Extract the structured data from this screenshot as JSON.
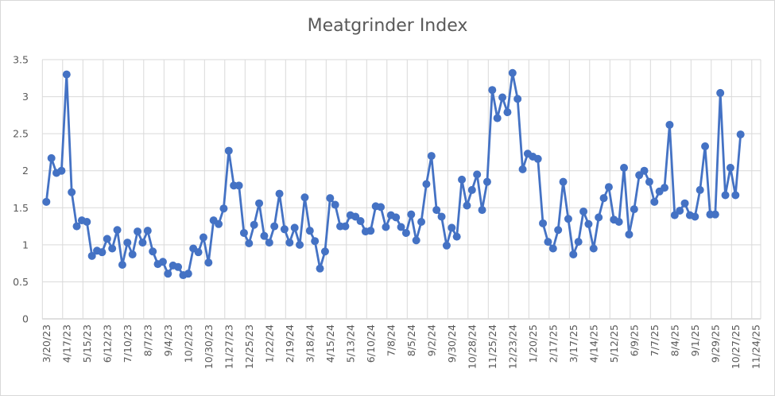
{
  "chart_data": {
    "type": "line",
    "title": "Meatgrinder Index",
    "xlabel": "",
    "ylabel": "",
    "ylim": [
      0,
      3.5
    ],
    "yticks": [
      "0",
      "0.5",
      "1",
      "1.5",
      "2",
      "2.5",
      "3",
      "3.5"
    ],
    "xrange": [
      "3/20/23",
      "11/24/25"
    ],
    "xtick_labels": [
      "3/20/23",
      "4/17/23",
      "5/15/23",
      "6/12/23",
      "7/10/23",
      "8/7/23",
      "9/4/23",
      "10/2/23",
      "10/30/23",
      "11/27/23",
      "12/25/23",
      "1/22/24",
      "2/19/24",
      "3/18/24",
      "4/15/24",
      "5/13/24",
      "6/10/24",
      "7/8/24",
      "8/5/24",
      "9/2/24",
      "9/30/24",
      "10/28/24",
      "11/25/24",
      "12/23/24",
      "1/20/25",
      "2/17/25",
      "3/17/25",
      "4/14/25",
      "5/12/25",
      "6/9/25",
      "7/7/25",
      "8/4/25",
      "9/1/25",
      "9/29/25",
      "10/27/25",
      "11/24/25"
    ],
    "grid": true,
    "legend": "none",
    "markers": true,
    "color": "#4472C4",
    "x": [
      "3/20/23",
      "3/27/23",
      "4/3/23",
      "4/10/23",
      "4/17/23",
      "4/24/23",
      "5/1/23",
      "5/8/23",
      "5/15/23",
      "5/22/23",
      "5/29/23",
      "6/5/23",
      "6/12/23",
      "6/19/23",
      "6/26/23",
      "7/3/23",
      "7/10/23",
      "7/17/23",
      "7/24/23",
      "7/31/23",
      "8/7/23",
      "8/14/23",
      "8/21/23",
      "8/28/23",
      "9/4/23",
      "9/11/23",
      "9/18/23",
      "9/25/23",
      "10/2/23",
      "10/9/23",
      "10/16/23",
      "10/23/23",
      "10/30/23",
      "11/6/23",
      "11/13/23",
      "11/20/23",
      "11/27/23",
      "12/4/23",
      "12/11/23",
      "12/18/23",
      "12/25/23",
      "1/1/24",
      "1/8/24",
      "1/15/24",
      "1/22/24",
      "1/29/24",
      "2/5/24",
      "2/12/24",
      "2/19/24",
      "2/26/24",
      "3/4/24",
      "3/11/24",
      "3/18/24",
      "3/25/24",
      "4/1/24",
      "4/8/24",
      "4/15/24",
      "4/22/24",
      "4/29/24",
      "5/6/24",
      "5/13/24",
      "5/20/24",
      "5/27/24",
      "6/3/24",
      "6/10/24",
      "6/17/24",
      "6/24/24",
      "7/1/24",
      "7/8/24",
      "7/15/24",
      "7/22/24",
      "7/29/24",
      "8/5/24",
      "8/12/24",
      "8/19/24",
      "8/26/24",
      "9/2/24",
      "9/9/24",
      "9/16/24",
      "9/23/24",
      "9/30/24",
      "10/7/24",
      "10/14/24",
      "10/21/24",
      "10/28/24",
      "11/4/24",
      "11/11/24",
      "11/18/24",
      "11/25/24",
      "12/2/24",
      "12/9/24",
      "12/16/24",
      "12/23/24",
      "12/30/24",
      "1/6/25",
      "1/13/25",
      "1/20/25",
      "1/27/25",
      "2/3/25",
      "2/10/25",
      "2/17/25",
      "2/24/25",
      "3/3/25",
      "3/10/25",
      "3/17/25",
      "3/24/25",
      "3/31/25",
      "4/7/25",
      "4/14/25",
      "4/21/25",
      "4/28/25",
      "5/5/25",
      "5/12/25",
      "5/19/25",
      "5/26/25",
      "6/2/25",
      "6/9/25",
      "6/16/25",
      "6/23/25",
      "6/30/25",
      "7/7/25",
      "7/14/25",
      "7/21/25",
      "7/28/25",
      "8/4/25",
      "8/11/25",
      "8/18/25",
      "8/25/25",
      "9/1/25",
      "9/8/25",
      "9/15/25",
      "9/22/25",
      "9/29/25",
      "10/6/25",
      "10/13/25",
      "10/20/25",
      "10/27/25",
      "11/3/25"
    ],
    "values": [
      1.58,
      2.17,
      1.97,
      2.0,
      3.3,
      1.71,
      1.25,
      1.33,
      1.31,
      0.85,
      0.92,
      0.9,
      1.08,
      0.95,
      1.2,
      0.73,
      1.03,
      0.87,
      1.18,
      1.03,
      1.19,
      0.91,
      0.74,
      0.77,
      0.61,
      0.72,
      0.7,
      0.59,
      0.61,
      0.95,
      0.9,
      1.1,
      0.76,
      1.33,
      1.28,
      1.49,
      2.27,
      1.8,
      1.8,
      1.16,
      1.02,
      1.27,
      1.56,
      1.12,
      1.03,
      1.25,
      1.69,
      1.21,
      1.03,
      1.23,
      1.0,
      1.64,
      1.19,
      1.05,
      0.68,
      0.91,
      1.63,
      1.54,
      1.25,
      1.25,
      1.4,
      1.38,
      1.32,
      1.18,
      1.19,
      1.52,
      1.51,
      1.24,
      1.4,
      1.37,
      1.24,
      1.16,
      1.41,
      1.06,
      1.31,
      1.82,
      2.2,
      1.47,
      1.38,
      0.99,
      1.23,
      1.11,
      1.88,
      1.53,
      1.74,
      1.95,
      1.47,
      1.85,
      3.09,
      2.71,
      2.99,
      2.79,
      3.32,
      2.97,
      2.02,
      2.23,
      2.19,
      2.16,
      1.29,
      1.04,
      0.95,
      1.2,
      1.85,
      1.35,
      0.87,
      1.04,
      1.45,
      1.28,
      0.95,
      1.37,
      1.63,
      1.78,
      1.34,
      1.31,
      2.04,
      1.14,
      1.48,
      1.94,
      2.0,
      1.85,
      1.58,
      1.72,
      1.77,
      2.62,
      1.4,
      1.46,
      1.56,
      1.4,
      1.38,
      1.74,
      2.33,
      1.41,
      1.41,
      3.05,
      1.67,
      2.04,
      1.67,
      2.49
    ]
  }
}
